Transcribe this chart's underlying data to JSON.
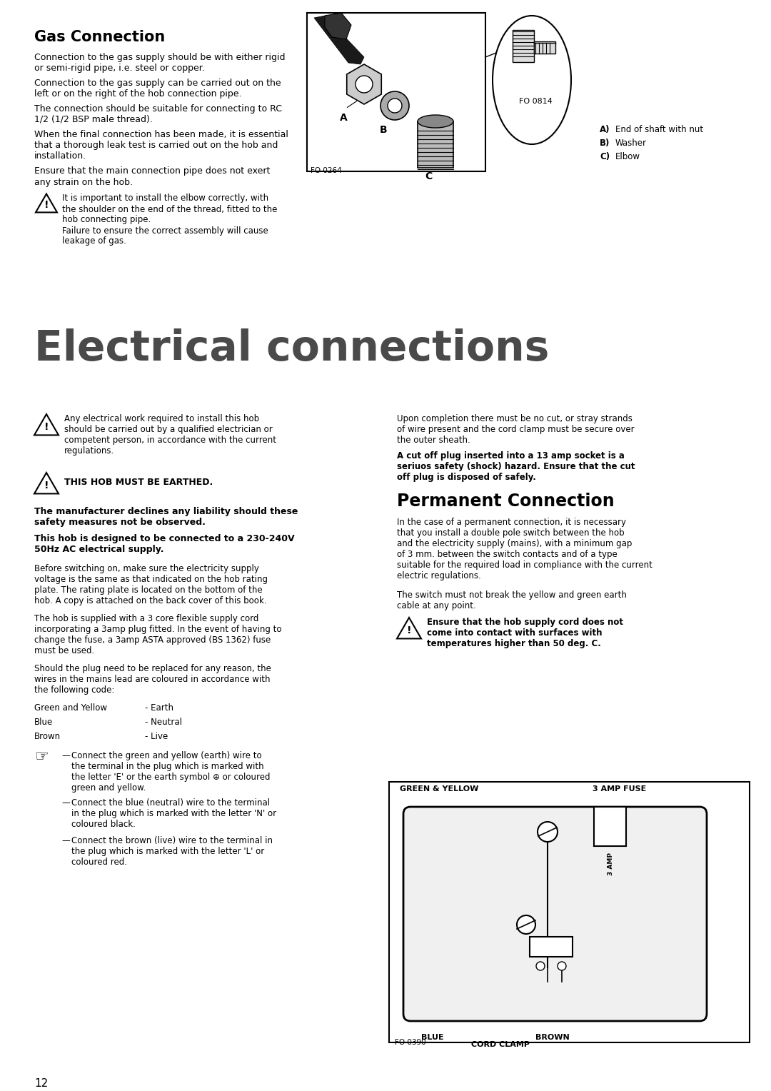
{
  "bg_color": "#ffffff",
  "text_color": "#000000",
  "page_number": "12",
  "gas_connection_title": "Gas Connection",
  "gas_body_1": "Connection to the gas supply should be with either rigid\nor semi-rigid pipe, i.e. steel or copper.",
  "gas_body_2": "Connection to the gas supply can be carried out on the\nleft or on the right of the hob connection pipe.",
  "gas_body_3": "The connection should be suitable for connecting to RC\n1/2 (1/2 BSP male thread).",
  "gas_body_4": "When the final connection has been made, it is essential\nthat a thorough leak test is carried out on the hob and\ninstallation.",
  "gas_body_5": "Ensure that the main connection pipe does not exert\nany strain on the hob.",
  "warning_text_gas": "It is important to install the elbow correctly, with\nthe shoulder on the end of the thread, fitted to the\nhob connecting pipe.\nFailure to ensure the correct assembly will cause\nleakage of gas.",
  "electrical_title": "Electrical connections",
  "elec_warning_1": "Any electrical work required to install this hob\nshould be carried out by a qualified electrician or\ncompetent person, in accordance with the current\nregulations.",
  "elec_warning_2": "THIS HOB MUST BE EARTHED.",
  "elec_bold_1": "The manufacturer declines any liability should these\nsafety measures not be observed.",
  "elec_bold_2": "This hob is designed to be connected to a 230-240V\n50Hz AC electrical supply.",
  "elec_body_1": "Before switching on, make sure the electricity supply\nvoltage is the same as that indicated on the hob rating\nplate. The rating plate is located on the bottom of the\nhob. A copy is attached on the back cover of this book.",
  "elec_body_2": "The hob is supplied with a 3 core flexible supply cord\nincorporating a 3amp plug fitted. In the event of having to\nchange the fuse, a 3amp ASTA approved (BS 1362) fuse\nmust be used.",
  "elec_body_3": "Should the plug need to be replaced for any reason, the\nwires in the mains lead are coloured in accordance with\nthe following code:",
  "wire_col_1a": "Green and Yellow",
  "wire_col_1b": "- Earth",
  "wire_col_2a": "Blue",
  "wire_col_2b": "- Neutral",
  "wire_col_3a": "Brown",
  "wire_col_3b": "- Live",
  "bullet_1a": "Connect the green and yellow (earth) wire to",
  "bullet_1b": "the terminal in the plug which is marked with",
  "bullet_1c": "the letter 'E' or the earth symbol ⊕ or coloured",
  "bullet_1d": "green and yellow.",
  "bullet_2a": "Connect the blue (neutral) wire to the terminal",
  "bullet_2b": "in the plug which is marked with the letter 'N' or",
  "bullet_2c": "coloured black.",
  "bullet_3a": "Connect the brown (live) wire to the terminal in",
  "bullet_3b": "the plug which is marked with the letter 'L' or",
  "bullet_3c": "coloured red.",
  "right_col_1": "Upon completion there must be no cut, or stray strands\nof wire present and the cord clamp must be secure over\nthe outer sheath.",
  "right_col_bold": "A cut off plug inserted into a 13 amp socket is a\nseriuos safety (shock) hazard. Ensure that the cut\noff plug is disposed of safely.",
  "permanent_title": "Permanent Connection",
  "permanent_body_1": "In the case of a permanent connection, it is necessary\nthat you install a double pole switch between the hob\nand the electricity supply (mains), with a minimum gap\nof 3 mm. between the switch contacts and of a type\nsuitable for the required load in compliance with the current\nelectric regulations.",
  "permanent_body_2": "The switch must not break the yellow and green earth\ncable at any point.",
  "perm_warning": "Ensure that the hob supply cord does not\ncome into contact with surfaces with\ntemperatures higher than 50 deg. C.",
  "fo_0264": "FO 0264",
  "fo_0814": "FO 0814",
  "fo_0390": "FO 0390",
  "fig_label_a": "A) End of shaft with nut",
  "fig_label_b": "B) Washer",
  "fig_label_c": "C) Elbow",
  "label_green_yellow": "GREEN & YELLOW",
  "label_3amp_fuse": "3 AMP FUSE",
  "label_blue": "BLUE",
  "label_brown": "BROWN",
  "label_cord_clamp": "CORD CLAMP",
  "label_3amp": "3 AMP"
}
